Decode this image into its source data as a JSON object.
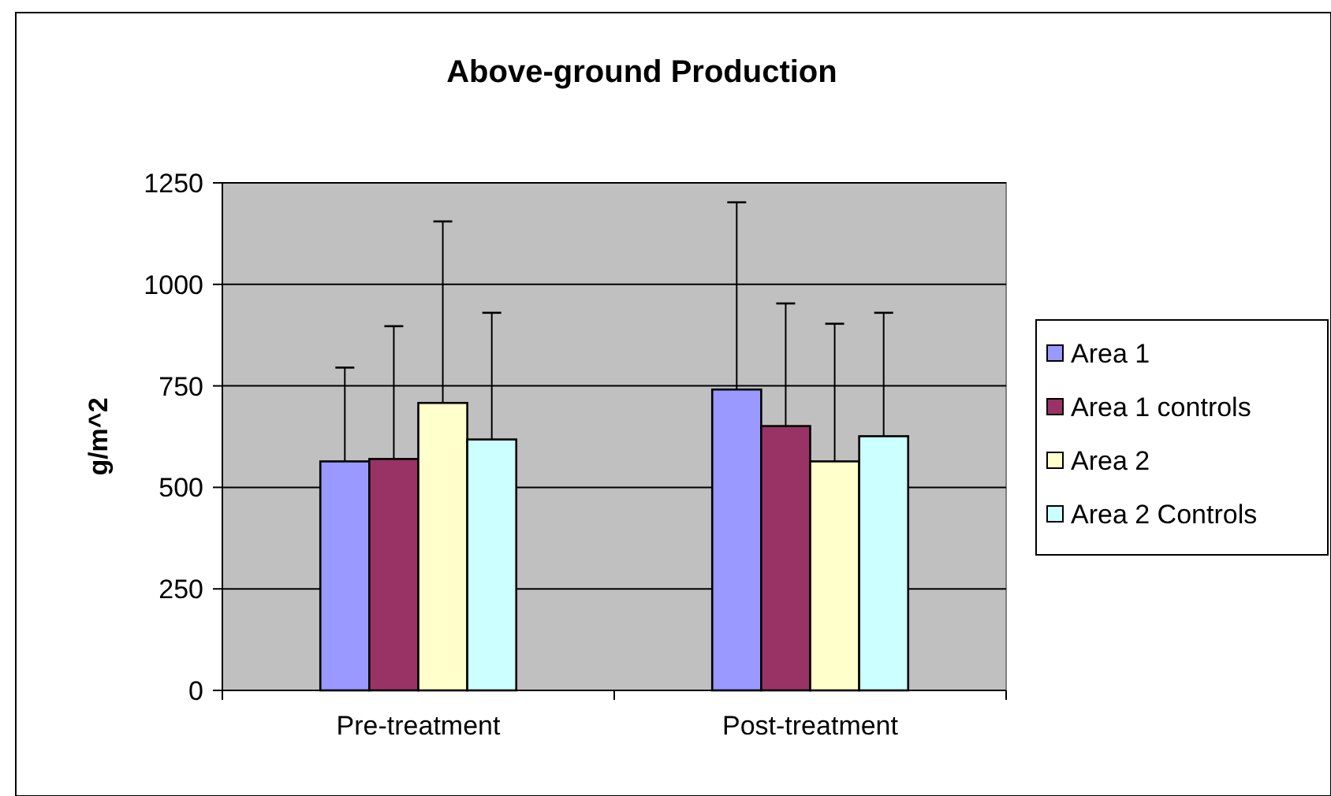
{
  "chart_data": {
    "type": "bar",
    "title": "Above-ground Production",
    "ylabel": "g/m^2",
    "categories": [
      "Pre-treatment",
      "Post-treatment"
    ],
    "series": [
      {
        "name": "Area 1",
        "color": "#9999ff",
        "values": [
          564,
          741
        ],
        "errors": [
          [
            564,
            795
          ],
          [
            741,
            1202
          ]
        ]
      },
      {
        "name": "Area 1 controls",
        "color": "#993366",
        "values": [
          570,
          651
        ],
        "errors": [
          [
            570,
            897
          ],
          [
            651,
            953
          ]
        ]
      },
      {
        "name": "Area 2",
        "color": "#ffffcc",
        "values": [
          708,
          564
        ],
        "errors": [
          [
            708,
            1155
          ],
          [
            564,
            903
          ]
        ]
      },
      {
        "name": "Area 2 Controls",
        "color": "#ccffff",
        "values": [
          618,
          626
        ],
        "errors": [
          [
            618,
            930
          ],
          [
            626,
            930
          ]
        ]
      }
    ],
    "ylim": [
      0,
      1250
    ],
    "yticks": [
      0,
      250,
      500,
      750,
      1000,
      1250
    ],
    "grid": "y",
    "legend": "right"
  }
}
